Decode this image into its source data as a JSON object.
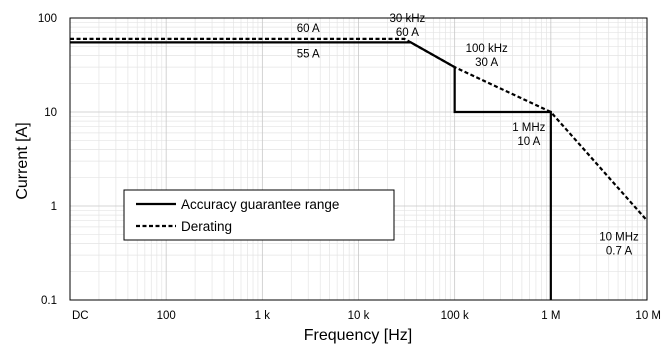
{
  "chart_data": {
    "type": "line",
    "xlabel": "Frequency [Hz]",
    "ylabel": "Current [A]",
    "x_scale": "log",
    "y_scale": "log",
    "grid": true,
    "xlim": [
      10,
      10000000
    ],
    "ylim": [
      0.1,
      100
    ],
    "x_tick_labels": [
      {
        "x": 10,
        "label": "DC"
      },
      {
        "x": 100,
        "label": "100"
      },
      {
        "x": 1000,
        "label": "1 k"
      },
      {
        "x": 10000,
        "label": "10 k"
      },
      {
        "x": 100000,
        "label": "100 k"
      },
      {
        "x": 1000000,
        "label": "1 M"
      },
      {
        "x": 10000000,
        "label": "10 M"
      }
    ],
    "y_tick_labels": [
      {
        "y": 100,
        "label": "100"
      },
      {
        "y": 10,
        "label": "10"
      },
      {
        "y": 1,
        "label": "1"
      },
      {
        "y": 0.1,
        "label": "0.1"
      }
    ],
    "series": [
      {
        "name": "Accuracy guarantee range",
        "style": "solid",
        "color": "#000000",
        "points": [
          {
            "x": 10,
            "y": 55
          },
          {
            "x": 35000,
            "y": 55
          },
          {
            "x": 100000,
            "y": 30
          },
          {
            "x": 100000,
            "y": 10
          },
          {
            "x": 1000000,
            "y": 10
          },
          {
            "x": 1000000,
            "y": 0.1
          }
        ]
      },
      {
        "name": "Derating",
        "style": "dashed",
        "color": "#000000",
        "points": [
          {
            "x": 10,
            "y": 60
          },
          {
            "x": 30000,
            "y": 60
          },
          {
            "x": 100000,
            "y": 30
          },
          {
            "x": 1000000,
            "y": 10
          },
          {
            "x": 10000000,
            "y": 0.7
          }
        ]
      }
    ],
    "annotations": [
      {
        "lines": [
          "60 A"
        ],
        "x": 120,
        "y": 60,
        "position": "above"
      },
      {
        "lines": [
          "55 A"
        ],
        "x": 120,
        "y": 55,
        "position": "below"
      },
      {
        "lines": [
          "30 kHz",
          "60 A"
        ],
        "x": 30000,
        "y": 60,
        "position": "above"
      },
      {
        "lines": [
          "100 kHz",
          "30 A"
        ],
        "x": 100000,
        "y": 30,
        "position": "above-right"
      },
      {
        "lines": [
          "1 MHz",
          "10 A"
        ],
        "x": 1000000,
        "y": 10,
        "position": "below-left"
      },
      {
        "lines": [
          "10 MHz",
          "0.7 A"
        ],
        "x": 10000000,
        "y": 0.7,
        "position": "below-left"
      }
    ],
    "legend": {
      "placement": "lower-left",
      "entries": [
        {
          "label": "Accuracy guarantee range",
          "style": "solid"
        },
        {
          "label": "Derating",
          "style": "dashed"
        }
      ]
    }
  }
}
